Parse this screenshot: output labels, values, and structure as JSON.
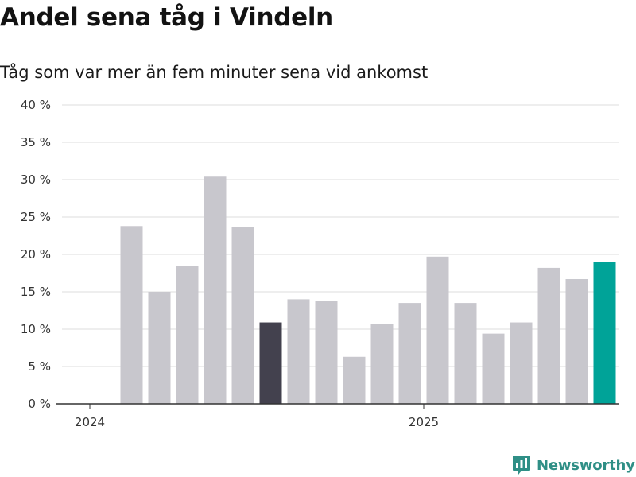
{
  "colors": {
    "bar_default": "#c8c7cd",
    "bar_highlight_dark": "#43414e",
    "bar_highlight_current": "#00a398",
    "grid": "#dddddd",
    "axis": "#333333",
    "brand": "#2f8f86"
  },
  "brand": {
    "name": "Newsworthy",
    "icon": "newsworthy-logo-icon"
  },
  "chart_data": {
    "type": "bar",
    "title": "Andel sena tåg i Vindeln",
    "subtitle": "Tåg som var mer än fem minuter sena vid ankomst",
    "xlabel": "",
    "ylabel": "",
    "ylim": [
      0,
      40
    ],
    "y_ticks": [
      0,
      5,
      10,
      15,
      20,
      25,
      30,
      35,
      40
    ],
    "y_tick_labels": [
      "0 %",
      "5 %",
      "10 %",
      "15 %",
      "20 %",
      "25 %",
      "30 %",
      "35 %",
      "40 %"
    ],
    "x_tick_labels": [
      {
        "label": "2024",
        "date": "2024-01-01"
      },
      {
        "label": "2025",
        "date": "2025-01-01"
      }
    ],
    "x_range": [
      "2023-12-01",
      "2025-08-01"
    ],
    "grid": true,
    "legend": "none",
    "series": [
      {
        "values": [
          {
            "date": "2024-02",
            "value": 23.8,
            "highlight": ""
          },
          {
            "date": "2024-03",
            "value": 15.0,
            "highlight": ""
          },
          {
            "date": "2024-04",
            "value": 18.5,
            "highlight": ""
          },
          {
            "date": "2024-05",
            "value": 30.4,
            "highlight": ""
          },
          {
            "date": "2024-06",
            "value": 23.7,
            "highlight": ""
          },
          {
            "date": "2024-07",
            "value": 10.9,
            "highlight": "dark"
          },
          {
            "date": "2024-08",
            "value": 14.0,
            "highlight": ""
          },
          {
            "date": "2024-09",
            "value": 13.8,
            "highlight": ""
          },
          {
            "date": "2024-10",
            "value": 6.3,
            "highlight": ""
          },
          {
            "date": "2024-11",
            "value": 10.7,
            "highlight": ""
          },
          {
            "date": "2024-12",
            "value": 13.5,
            "highlight": ""
          },
          {
            "date": "2025-01",
            "value": 19.7,
            "highlight": ""
          },
          {
            "date": "2025-02",
            "value": 13.5,
            "highlight": ""
          },
          {
            "date": "2025-03",
            "value": 9.4,
            "highlight": ""
          },
          {
            "date": "2025-04",
            "value": 10.9,
            "highlight": ""
          },
          {
            "date": "2025-05",
            "value": 18.2,
            "highlight": ""
          },
          {
            "date": "2025-06",
            "value": 16.7,
            "highlight": ""
          },
          {
            "date": "2025-07",
            "value": 19.0,
            "highlight": "current"
          }
        ]
      }
    ]
  }
}
